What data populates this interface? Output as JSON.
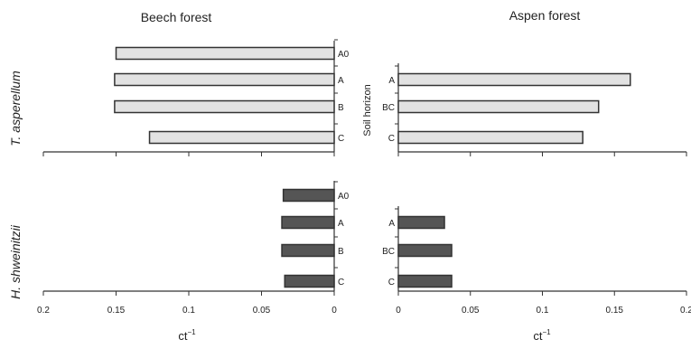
{
  "colors": {
    "light_bar": "#e2e2e2",
    "dark_bar": "#555555",
    "bar_outline": "#333333",
    "axis": "#333333"
  },
  "labels": {
    "soil_horizon": "Soil horizon",
    "xlabel_left": "ct",
    "xlabel_right": "ct",
    "xlabel_superscript": "−1"
  },
  "chart_data": [
    {
      "type": "bar",
      "orientation": "horizontal",
      "title": "Beech forest",
      "row_label": "T. asperellum",
      "categories": [
        "A0",
        "A",
        "B",
        "C"
      ],
      "values": [
        0.15,
        0.151,
        0.151,
        0.127
      ],
      "xlim": [
        0,
        0.2
      ],
      "x_reversed": true,
      "xticks": [
        "0.2",
        "0.15",
        "0.1",
        "0.05",
        "0"
      ],
      "color": "#e2e2e2"
    },
    {
      "type": "bar",
      "orientation": "horizontal",
      "title": "Aspen forest",
      "row_label": "T. asperellum",
      "categories": [
        "A",
        "BC",
        "C"
      ],
      "values": [
        0.161,
        0.139,
        0.128
      ],
      "xlim": [
        0,
        0.2
      ],
      "x_reversed": false,
      "xticks": [
        "0",
        "0.05",
        "0.1",
        "0.15",
        "0.2"
      ],
      "color": "#e2e2e2"
    },
    {
      "type": "bar",
      "orientation": "horizontal",
      "title": "Beech forest",
      "row_label": "H. shweinitzii",
      "categories": [
        "A0",
        "A",
        "B",
        "C"
      ],
      "values": [
        0.035,
        0.036,
        0.036,
        0.034
      ],
      "xlim": [
        0,
        0.2
      ],
      "x_reversed": true,
      "xticks": [
        "0.2",
        "0.15",
        "0.1",
        "0.05",
        "0"
      ],
      "color": "#555555"
    },
    {
      "type": "bar",
      "orientation": "horizontal",
      "title": "Aspen forest",
      "row_label": "H. shweinitzii",
      "categories": [
        "A",
        "BC",
        "C"
      ],
      "values": [
        0.032,
        0.037,
        0.037
      ],
      "xlim": [
        0,
        0.2
      ],
      "x_reversed": false,
      "xticks": [
        "0",
        "0.05",
        "0.1",
        "0.15",
        "0.2"
      ],
      "color": "#555555"
    }
  ]
}
